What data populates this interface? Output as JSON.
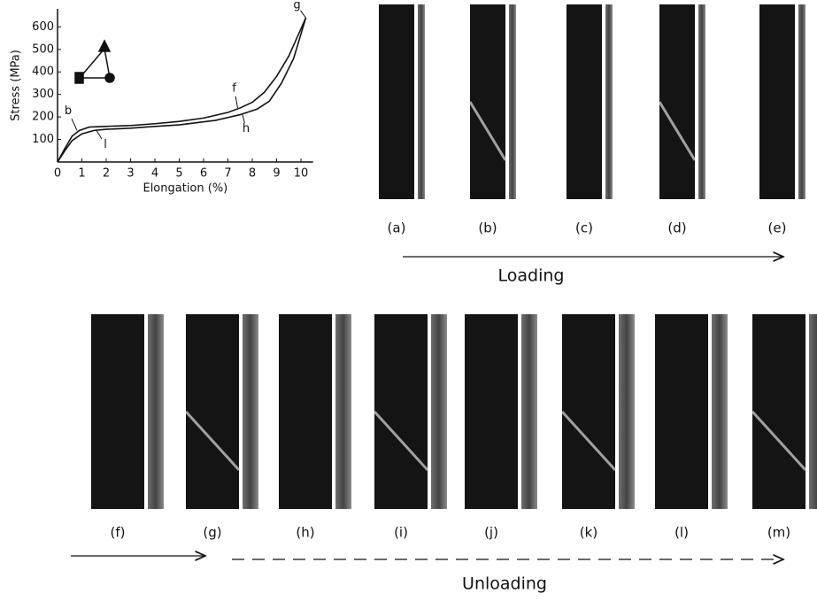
{
  "chart_data": {
    "type": "line",
    "xlabel": "Elongation (%)",
    "ylabel": "Stress (MPa)",
    "xlim": [
      0,
      10.5
    ],
    "xticks": [
      0,
      1,
      2,
      3,
      4,
      5,
      6,
      7,
      8,
      9,
      10
    ],
    "ylim": [
      0,
      680
    ],
    "yticks": [
      100,
      200,
      300,
      400,
      500,
      600
    ],
    "color": "#111111",
    "series": [
      {
        "x": [
          0,
          0.3,
          0.6,
          0.9,
          1.3,
          2,
          3,
          4,
          5,
          6,
          7,
          7.5,
          8,
          8.5,
          9,
          9.5,
          10.2
        ],
        "values": [
          0,
          60,
          115,
          140,
          155,
          158,
          162,
          170,
          180,
          195,
          220,
          240,
          265,
          310,
          380,
          470,
          640
        ]
      },
      {
        "x": [
          10.2,
          9.7,
          9.2,
          8.7,
          8.2,
          7.5,
          6.5,
          5,
          4,
          3,
          2,
          1.5,
          1,
          0.6,
          0.3,
          0
        ],
        "values": [
          640,
          460,
          350,
          270,
          235,
          210,
          185,
          165,
          158,
          150,
          145,
          140,
          125,
          95,
          50,
          0
        ]
      }
    ],
    "annotations": [
      {
        "text": "b",
        "x": 0.8,
        "y": 140
      },
      {
        "text": "f",
        "x": 7.4,
        "y": 240
      },
      {
        "text": "g",
        "x": 10.2,
        "y": 640
      },
      {
        "text": "h",
        "x": 7.6,
        "y": 210
      },
      {
        "text": "l",
        "x": 1.6,
        "y": 140
      }
    ]
  },
  "panels": {
    "loading": {
      "labels": [
        "(a)",
        "(b)",
        "(c)",
        "(d)",
        "(e)"
      ],
      "caption": "Loading"
    },
    "unloading": {
      "labels": [
        "(f)",
        "(g)",
        "(h)",
        "(i)",
        "(j)",
        "(k)",
        "(l)",
        "(m)"
      ],
      "caption": "Unloading"
    }
  }
}
